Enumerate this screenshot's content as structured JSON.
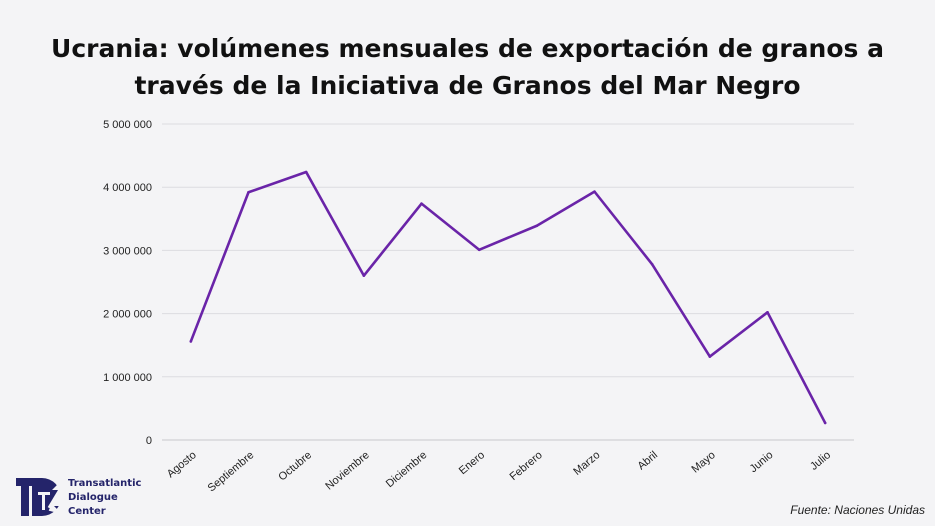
{
  "chart_data": {
    "type": "line",
    "title_lines": [
      "Ucrania: volúmenes mensuales de exportación de granos a",
      "través de la Iniciativa de Granos del Mar Negro"
    ],
    "categories": [
      "Agosto",
      "Septiembre",
      "Octubre",
      "Noviembre",
      "Diciembre",
      "Enero",
      "Febrero",
      "Marzo",
      "Abril",
      "Mayo",
      "Junio",
      "Julio"
    ],
    "series": [
      {
        "values": [
          1560000,
          3920000,
          4240000,
          2600000,
          3740000,
          3010000,
          3390000,
          3930000,
          2780000,
          1320000,
          2020000,
          270000
        ]
      }
    ],
    "y_ticks": [
      "0",
      "1 000 000",
      "2 000 000",
      "3 000 000",
      "4 000 000",
      "5 000 000"
    ],
    "ylim": [
      0,
      5000000
    ],
    "grid": true,
    "line_color": "#6a24a8"
  },
  "footer": {
    "logo_lines": [
      "Transatlantic",
      "Dialogue",
      "Center"
    ],
    "logo_icon": "tdc-monogram-icon",
    "source": "Fuente: Naciones Unidas"
  }
}
